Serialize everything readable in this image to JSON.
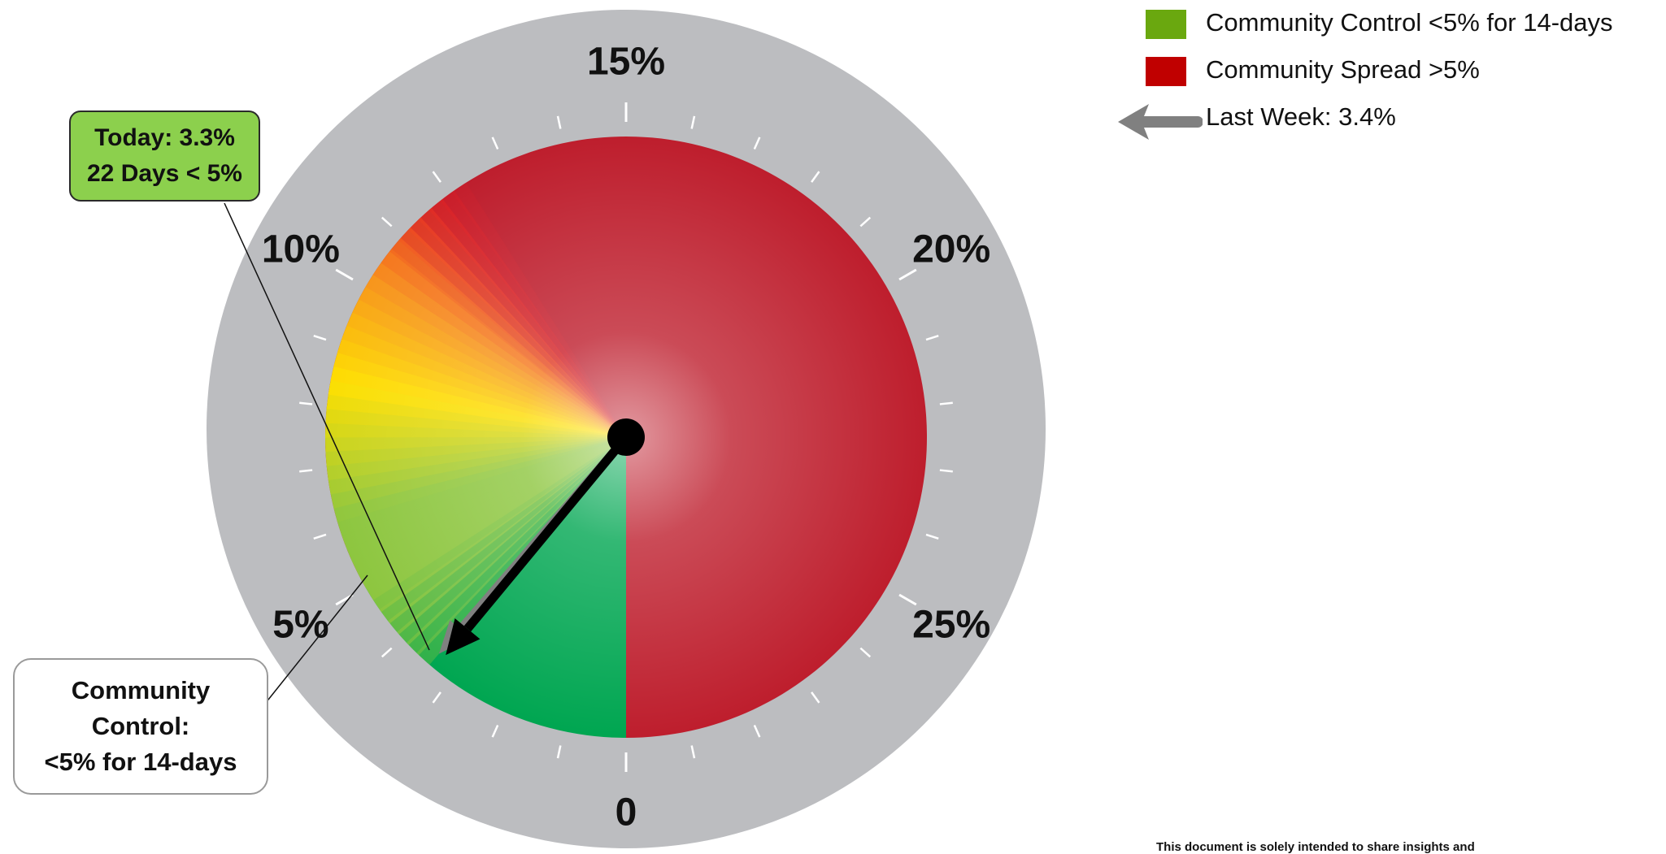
{
  "chart_data": {
    "type": "gauge",
    "scale_min": 0,
    "scale_max": 30,
    "scale_labels": [
      {
        "value": 0,
        "text": "0"
      },
      {
        "value": 5,
        "text": "5%"
      },
      {
        "value": 10,
        "text": "10%"
      },
      {
        "value": 15,
        "text": "15%"
      },
      {
        "value": 20,
        "text": "20%"
      },
      {
        "value": 25,
        "text": "25%"
      }
    ],
    "minor_tick_step": 1,
    "bands": [
      {
        "name": "Community Control <5% for 14-days",
        "from": 0,
        "to": 5,
        "color": "#00a651"
      },
      {
        "name": "Community Spread >5%",
        "from": 5,
        "to": 30,
        "color": "#be1e2d"
      }
    ],
    "current_value": 3.3,
    "last_week_value": 3.4,
    "colors": {
      "dial_ring": "#bcbdc0",
      "needle_today": "#000000",
      "needle_last_week": "#808080",
      "gradient_yellow": "#ffe000",
      "gradient_orange": "#f7941d",
      "gradient_red": "#ed1c24",
      "gradient_lightgreen": "#8dc63f"
    }
  },
  "callout_today": {
    "line1": "Today: 3.3%",
    "line2": "22 Days < 5%"
  },
  "callout_control": {
    "line1": "Community",
    "line2": "Control:",
    "line3": "<5% for 14-days"
  },
  "legend": {
    "control": {
      "label": "Community Control <5% for 14-days",
      "color": "#6aa80f"
    },
    "spread": {
      "label": "Community Spread >5%",
      "color": "#c00000"
    },
    "last_week": {
      "label": "Last Week: 3.4%",
      "icon": "left-arrow-icon"
    }
  },
  "footer": {
    "disclaimer": "This document is solely intended to share insights and"
  }
}
